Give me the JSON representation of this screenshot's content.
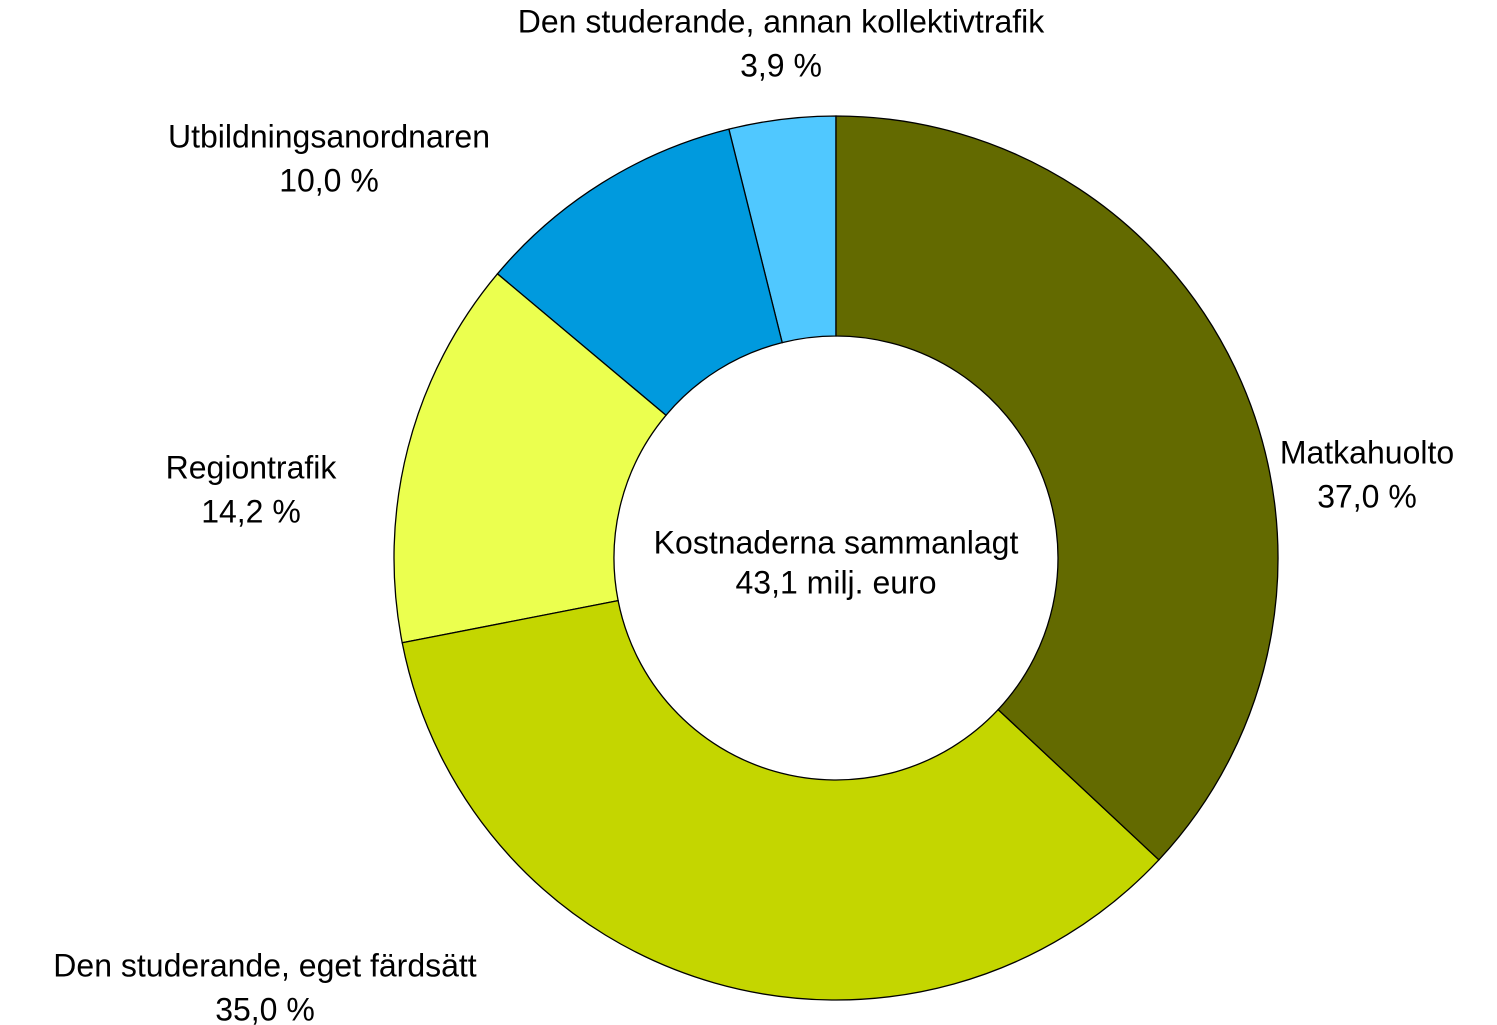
{
  "chart_data": {
    "type": "donut",
    "categories": [
      "Matkahuolto",
      "Den studerande, eget färdsätt",
      "Regiontrafik",
      "Utbildningsanordnaren",
      "Den studerande, annan kollektivtrafik"
    ],
    "values": [
      37.0,
      35.0,
      14.2,
      10.0,
      3.9
    ],
    "value_labels": [
      "37,0 %",
      "35,0 %",
      "14,2 %",
      "10,0 %",
      "3,9 %"
    ],
    "colors": [
      "#636a00",
      "#c4d600",
      "#ebff4f",
      "#009ade",
      "#50c8ff"
    ],
    "center_text": [
      "Kostnaderna sammanlagt",
      "43,1 milj. euro"
    ]
  }
}
